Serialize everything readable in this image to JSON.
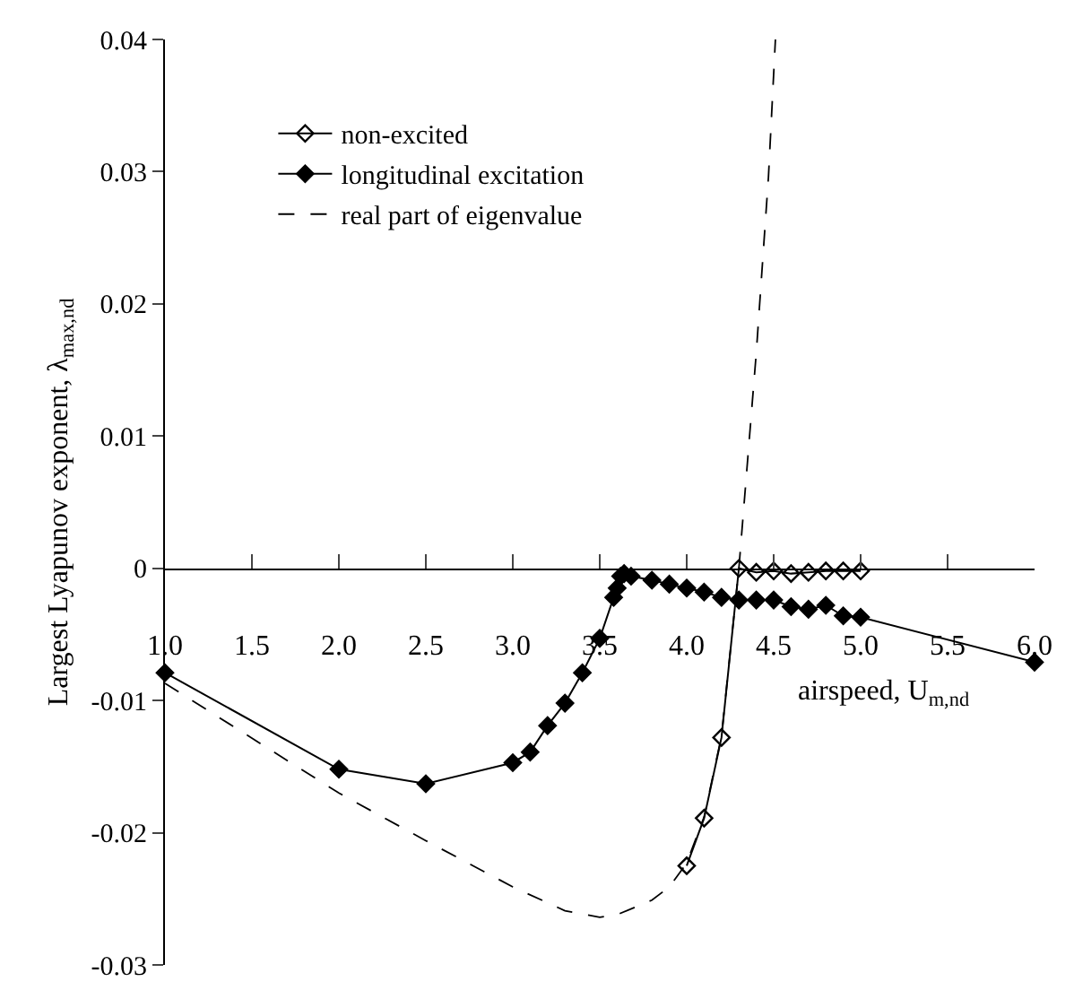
{
  "chart_data": {
    "type": "line",
    "xlabel": "airspeed, U$_{m,nd}$",
    "ylabel": "Largest Lyapunov exponent, λ$_{max,nd}$",
    "xlim": [
      1.0,
      6.0
    ],
    "ylim": [
      -0.03,
      0.04
    ],
    "xticks": [
      {
        "value": 1.0,
        "label": "1.0"
      },
      {
        "value": 1.5,
        "label": "1.5"
      },
      {
        "value": 2.0,
        "label": "2.0"
      },
      {
        "value": 2.5,
        "label": "2.5"
      },
      {
        "value": 3.0,
        "label": "3.0"
      },
      {
        "value": 3.5,
        "label": "3.5"
      },
      {
        "value": 4.0,
        "label": "4.0"
      },
      {
        "value": 4.5,
        "label": "4.5"
      },
      {
        "value": 5.0,
        "label": "5.0"
      },
      {
        "value": 5.5,
        "label": "5.5"
      },
      {
        "value": 6.0,
        "label": "6.0"
      }
    ],
    "yticks": [
      -0.03,
      -0.02,
      -0.01,
      0,
      0.01,
      0.02,
      0.03,
      0.04
    ],
    "legend": "top left",
    "series": [
      {
        "name": "non-excited",
        "color": "#000000",
        "marker": "diamond-open",
        "line_style": "solid",
        "x": [
          4.0,
          4.1,
          4.2,
          4.3,
          4.4,
          4.5,
          4.6,
          4.7,
          4.8,
          4.9,
          5.0
        ],
        "values": [
          -0.0225,
          -0.0189,
          -0.0128,
          0,
          -0.0003,
          -0.0002,
          -0.0004,
          -0.0003,
          -0.0002,
          -0.0002,
          -0.0002
        ]
      },
      {
        "name": "longitudinal excitation",
        "color": "#000000",
        "marker": "diamond",
        "line_style": "solid",
        "x": [
          1.0,
          2.0,
          2.5,
          3.0,
          3.1,
          3.2,
          3.3,
          3.4,
          3.5,
          3.58,
          3.6,
          3.62,
          3.64,
          3.68,
          3.8,
          3.9,
          4.0,
          4.1,
          4.2,
          4.3,
          4.4,
          4.5,
          4.6,
          4.7,
          4.8,
          4.9,
          5.0,
          6.0
        ],
        "values": [
          -0.0079,
          -0.0152,
          -0.0163,
          -0.0147,
          -0.0139,
          -0.0119,
          -0.0102,
          -0.0079,
          -0.0053,
          -0.0022,
          -0.0015,
          -0.0006,
          -0.0004,
          -0.0006,
          -0.0009,
          -0.0012,
          -0.0015,
          -0.0018,
          -0.0022,
          -0.0024,
          -0.0024,
          -0.0024,
          -0.0029,
          -0.0031,
          -0.0028,
          -0.0036,
          -0.0037,
          -0.0071
        ]
      },
      {
        "name": "real part of eigenvalue",
        "color": "#000000",
        "marker": "none",
        "line_style": "dashed",
        "x": [
          1.0,
          2.0,
          2.5,
          3.0,
          3.3,
          3.5,
          3.6,
          3.8,
          3.9,
          4.0,
          4.1,
          4.2,
          4.3,
          4.4,
          4.47,
          4.51
        ],
        "values": [
          -0.0087,
          -0.017,
          -0.0206,
          -0.0241,
          -0.0259,
          -0.0264,
          -0.0262,
          -0.0251,
          -0.0241,
          -0.0223,
          -0.0188,
          -0.0127,
          0,
          0.0163,
          0.0296,
          0.04
        ]
      }
    ]
  }
}
